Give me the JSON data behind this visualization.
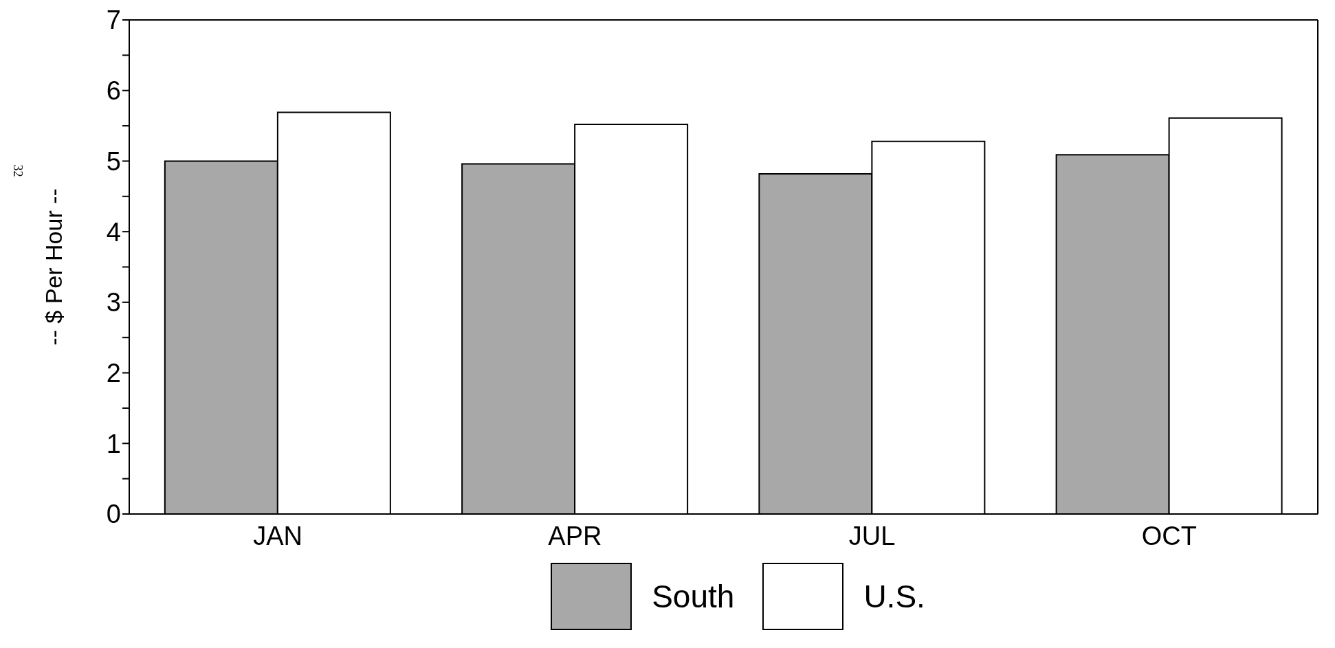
{
  "chart_data": {
    "type": "bar",
    "categories": [
      "JAN",
      "APR",
      "JUL",
      "OCT"
    ],
    "series": [
      {
        "name": "South",
        "color": "#a8a8a8",
        "values": [
          5.0,
          4.96,
          4.82,
          5.09
        ]
      },
      {
        "name": "U.S.",
        "color": "#ffffff",
        "values": [
          5.69,
          5.52,
          5.28,
          5.61
        ]
      }
    ],
    "ylabel": "-- $ Per Hour --",
    "ylim": [
      0,
      7
    ],
    "yticks": [
      0,
      {
        "value": 0.5,
        "label": null
      },
      1,
      {
        "value": 1.5,
        "label": null
      },
      2,
      {
        "value": 2.5,
        "label": null
      },
      3,
      {
        "value": 3.5,
        "label": null
      },
      4,
      {
        "value": 4.5,
        "label": null
      },
      5,
      {
        "value": 5.5,
        "label": null
      },
      6,
      {
        "value": 6.5,
        "label": null
      },
      7
    ],
    "annotations": [
      "32"
    ],
    "legend": "bottom"
  }
}
